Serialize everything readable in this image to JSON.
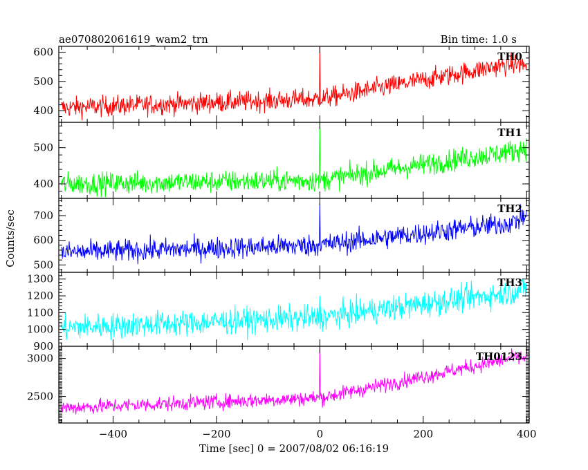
{
  "header": {
    "title": "ae070802061619_wam2_trn",
    "bin_time": "Bin time: 1.0 s"
  },
  "chart_data": {
    "type": "line",
    "title": "ae070802061619_wam2_trn",
    "xlabel": "Time [sec] 0 = 2007/08/02 06:16:19",
    "ylabel": "Counts/sec",
    "xlim": [
      -505,
      405
    ],
    "x_ticks": [
      -400,
      -200,
      0,
      200,
      400
    ],
    "bin_time_s": 1.0,
    "panels": [
      {
        "name": "TH0",
        "color": "#ff0000",
        "ylim": [
          360,
          620
        ],
        "y_ticks": [
          400,
          500,
          600
        ],
        "trend": [
          [
            -500,
            410
          ],
          [
            0,
            440
          ],
          [
            370,
            560
          ],
          [
            400,
            555
          ]
        ],
        "noise": 25,
        "spike": {
          "x": 0,
          "y": 620
        }
      },
      {
        "name": "TH1",
        "color": "#00ff00",
        "ylim": [
          360,
          570
        ],
        "y_ticks": [
          400,
          500
        ],
        "trend": [
          [
            -500,
            400
          ],
          [
            0,
            410
          ],
          [
            370,
            490
          ],
          [
            400,
            500
          ]
        ],
        "noise": 22,
        "spike": {
          "x": 0,
          "y": 570
        }
      },
      {
        "name": "TH2",
        "color": "#0000ff",
        "ylim": [
          470,
          770
        ],
        "y_ticks": [
          500,
          600,
          700
        ],
        "trend": [
          [
            -500,
            550
          ],
          [
            0,
            580
          ],
          [
            370,
            670
          ],
          [
            400,
            700
          ]
        ],
        "noise": 32,
        "spike": {
          "x": 0,
          "y": 750
        }
      },
      {
        "name": "TH3",
        "color": "#00ffff",
        "ylim": [
          900,
          1340
        ],
        "y_ticks": [
          900,
          1000,
          1100,
          1200,
          1300
        ],
        "trend": [
          [
            -500,
            1010
          ],
          [
            0,
            1070
          ],
          [
            370,
            1220
          ],
          [
            400,
            1250
          ]
        ],
        "noise": 55,
        "spike": {
          "x": 0,
          "y": 1200
        }
      },
      {
        "name": "TH0123",
        "color": "#ff00ff",
        "ylim": [
          2150,
          3160
        ],
        "y_ticks": [
          2500,
          3000
        ],
        "trend": [
          [
            -500,
            2350
          ],
          [
            0,
            2480
          ],
          [
            100,
            2620
          ],
          [
            370,
            3000
          ],
          [
            400,
            3010
          ]
        ],
        "noise": 70,
        "spike": {
          "x": 0,
          "y": 3150
        }
      }
    ]
  }
}
